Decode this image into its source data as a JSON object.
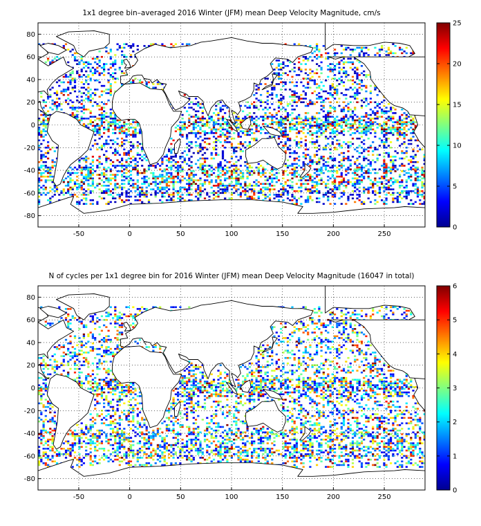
{
  "panels": [
    {
      "title": "1x1 degree bin–averaged 2016 Winter (JFM) mean Deep Velocity Magnitude, cm/s",
      "colorbar_ticks": [
        "0",
        "5",
        "10",
        "15",
        "20",
        "25"
      ],
      "colorbar_range": [
        0,
        25
      ]
    },
    {
      "title": "N of cycles per 1x1 degree bin for 2016 Winter (JFM) mean Deep Velocity Magnitude (16047 in total)",
      "colorbar_ticks": [
        "0",
        "1",
        "2",
        "3",
        "4",
        "5",
        "6"
      ],
      "colorbar_range": [
        0,
        6
      ]
    }
  ],
  "x_ticks": [
    "-50",
    "0",
    "50",
    "100",
    "150",
    "200",
    "250"
  ],
  "y_ticks": [
    "80",
    "60",
    "40",
    "20",
    "0",
    "-20",
    "-40",
    "-60",
    "-80"
  ],
  "colormap": "jet",
  "colors": {
    "land_outline": "#000000",
    "grid": "#000000",
    "background": "#ffffff"
  },
  "chart_data": [
    {
      "type": "heatmap",
      "title": "1x1 degree bin–averaged 2016 Winter (JFM) mean Deep Velocity Magnitude, cm/s",
      "xlim": [
        -90,
        290
      ],
      "ylim": [
        -90,
        90
      ],
      "grid": true,
      "colorbar": {
        "min": 0,
        "max": 25,
        "label_ticks": [
          0,
          5,
          10,
          15,
          20,
          25
        ]
      }
    },
    {
      "type": "heatmap",
      "title": "N of cycles per 1x1 degree bin for 2016 Winter (JFM) mean Deep Velocity Magnitude (16047 in total)",
      "xlim": [
        -90,
        290
      ],
      "ylim": [
        -90,
        90
      ],
      "grid": true,
      "total_cycles": 16047,
      "colorbar": {
        "min": 0,
        "max": 6,
        "label_ticks": [
          0,
          1,
          2,
          3,
          4,
          5,
          6
        ]
      }
    }
  ]
}
